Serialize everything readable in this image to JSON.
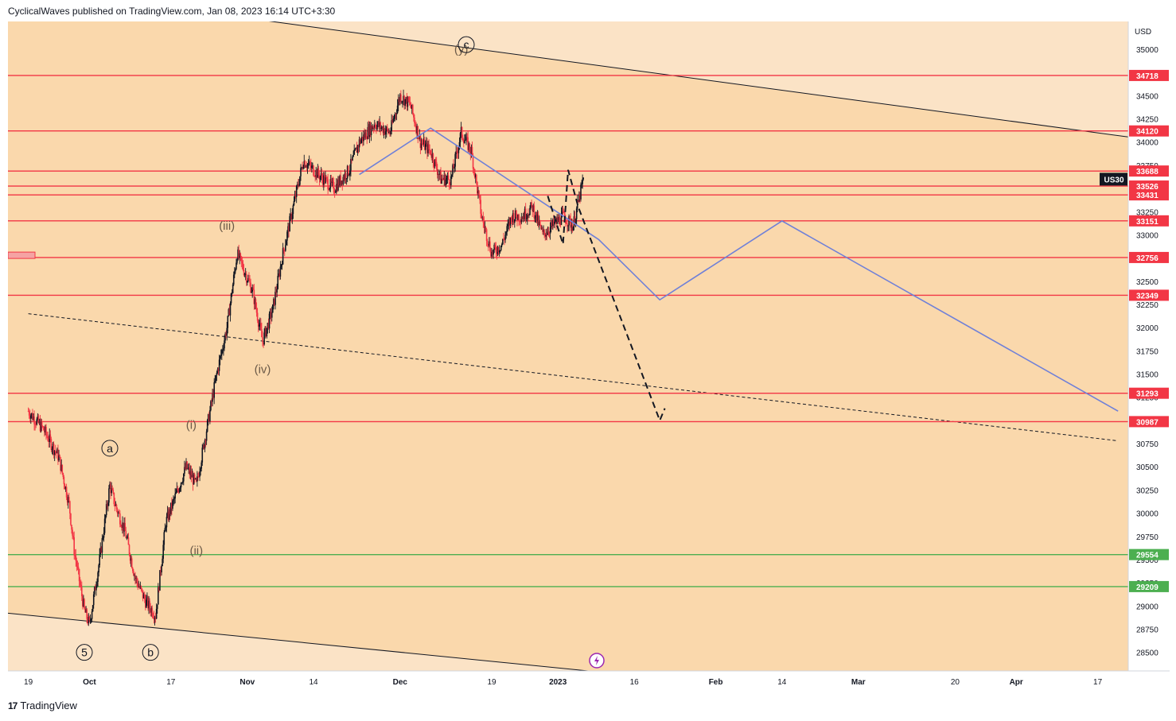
{
  "header": {
    "publisher_text": "CyclicalWaves published on TradingView.com, Jan 08, 2023 16:14 UTC+3:30"
  },
  "footer": {
    "brand": "TradingView",
    "logo_glyph": "17"
  },
  "colors": {
    "background_band": "#fbe3c6",
    "channel_fill": "#fad8ac",
    "level_line": "#f23645",
    "support_line": "#4caf50",
    "projection": "#6f80d8",
    "candle_up": "#131722",
    "candle_down": "#f23645",
    "label_bg_dark": "#131722"
  },
  "chart_data": {
    "type": "candlestick",
    "symbol": "US30",
    "currency": "USD",
    "y_axis": {
      "range": [
        28300,
        35300
      ],
      "ticks": [
        28500,
        28750,
        29000,
        29250,
        29500,
        29750,
        30000,
        30250,
        30500,
        30750,
        31000,
        31250,
        31500,
        31750,
        32000,
        32250,
        32500,
        32750,
        33000,
        33250,
        33500,
        33750,
        34000,
        34250,
        34500,
        34750,
        35000
      ]
    },
    "x_axis": {
      "labels": [
        "19",
        "Oct",
        "17",
        "Nov",
        "14",
        "Dec",
        "19",
        "2023",
        "16",
        "Feb",
        "14",
        "Mar",
        "20",
        "Apr",
        "17"
      ],
      "bold_labels": [
        "Oct",
        "Nov",
        "Dec",
        "2023",
        "Feb",
        "Mar",
        "Apr"
      ]
    },
    "price_levels": [
      {
        "value": 34718,
        "label": "34718",
        "kind": "resistance"
      },
      {
        "value": 34120,
        "label": "34120",
        "kind": "resistance"
      },
      {
        "value": 33688,
        "label": "33688",
        "kind": "resistance"
      },
      {
        "value": 33526,
        "label": "33526",
        "kind": "resistance"
      },
      {
        "value": 33431,
        "label": "33431",
        "kind": "resistance"
      },
      {
        "value": 33151,
        "label": "33151",
        "kind": "resistance"
      },
      {
        "value": 32756,
        "label": "32756",
        "kind": "resistance"
      },
      {
        "value": 32349,
        "label": "32349",
        "kind": "resistance"
      },
      {
        "value": 31293,
        "label": "31293",
        "kind": "resistance"
      },
      {
        "value": 30987,
        "label": "30987",
        "kind": "resistance"
      },
      {
        "value": 29554,
        "label": "29554",
        "kind": "support"
      },
      {
        "value": 29209,
        "label": "29209",
        "kind": "support"
      }
    ],
    "last_price_label": "US30",
    "wave_labels": [
      {
        "text": "5",
        "circled": true,
        "date": "2022-09-30",
        "price": 28500
      },
      {
        "text": "a",
        "circled": true,
        "date": "2022-10-05",
        "price": 30700
      },
      {
        "text": "b",
        "circled": true,
        "date": "2022-10-13",
        "price": 28500
      },
      {
        "text": "(i)",
        "circled": false,
        "date": "2022-10-21",
        "price": 30950
      },
      {
        "text": "(ii)",
        "circled": false,
        "date": "2022-10-22",
        "price": 29600
      },
      {
        "text": "(iii)",
        "circled": false,
        "date": "2022-10-28",
        "price": 33100
      },
      {
        "text": "(iv)",
        "circled": false,
        "date": "2022-11-04",
        "price": 31550
      },
      {
        "text": "(y)",
        "circled": false,
        "date": "2022-12-13",
        "price": 35000
      },
      {
        "text": "c",
        "circled": true,
        "date": "2022-12-14",
        "price": 35050
      }
    ],
    "channel": {
      "upper": [
        {
          "date": "2022-09-06",
          "price": 35750
        },
        {
          "date": "2023-04-21",
          "price": 34070
        }
      ],
      "lower": [
        {
          "date": "2022-09-19",
          "price": 28900
        },
        {
          "date": "2023-01-07",
          "price": 28300
        }
      ]
    },
    "median_line": [
      {
        "date": "2022-09-19",
        "price": 32150
      },
      {
        "date": "2023-04-21",
        "price": 30780
      }
    ],
    "projection_path": [
      {
        "date": "2022-11-23",
        "price": 33650
      },
      {
        "date": "2022-12-07",
        "price": 34150
      },
      {
        "date": "2023-01-09",
        "price": 32950
      },
      {
        "date": "2023-01-21",
        "price": 32300
      },
      {
        "date": "2023-02-14",
        "price": 33150
      },
      {
        "date": "2023-04-21",
        "price": 31100
      }
    ],
    "forecast_path": [
      {
        "date": "2022-12-30",
        "price": 33420
      },
      {
        "date": "2023-01-02",
        "price": 32900
      },
      {
        "date": "2023-01-03",
        "price": 33700
      },
      {
        "date": "2023-01-05",
        "price": 33300
      },
      {
        "date": "2023-01-21",
        "price": 31000
      },
      {
        "date": "2023-01-22",
        "price": 31130
      }
    ],
    "price_path": [
      [
        "2022-09-19",
        31100
      ],
      [
        "2022-09-22",
        30900
      ],
      [
        "2022-09-25",
        30600
      ],
      [
        "2022-09-27",
        30100
      ],
      [
        "2022-09-28",
        29600
      ],
      [
        "2022-09-30",
        28950
      ],
      [
        "2022-10-01",
        28800
      ],
      [
        "2022-10-03",
        29500
      ],
      [
        "2022-10-05",
        30300
      ],
      [
        "2022-10-06",
        30100
      ],
      [
        "2022-10-08",
        29800
      ],
      [
        "2022-10-10",
        29300
      ],
      [
        "2022-10-12",
        29050
      ],
      [
        "2022-10-14",
        28900
      ],
      [
        "2022-10-16",
        29900
      ],
      [
        "2022-10-18",
        30200
      ],
      [
        "2022-10-20",
        30500
      ],
      [
        "2022-10-22",
        30300
      ],
      [
        "2022-10-24",
        30900
      ],
      [
        "2022-10-26",
        31500
      ],
      [
        "2022-10-28",
        32000
      ],
      [
        "2022-10-30",
        32800
      ],
      [
        "2022-11-02",
        32400
      ],
      [
        "2022-11-04",
        31850
      ],
      [
        "2022-11-06",
        32200
      ],
      [
        "2022-11-08",
        32800
      ],
      [
        "2022-11-10",
        33300
      ],
      [
        "2022-11-12",
        33800
      ],
      [
        "2022-11-14",
        33700
      ],
      [
        "2022-11-16",
        33600
      ],
      [
        "2022-11-18",
        33500
      ],
      [
        "2022-11-21",
        33700
      ],
      [
        "2022-11-23",
        34000
      ],
      [
        "2022-11-26",
        34200
      ],
      [
        "2022-11-29",
        34100
      ],
      [
        "2022-12-01",
        34500
      ],
      [
        "2022-12-03",
        34400
      ],
      [
        "2022-12-05",
        34000
      ],
      [
        "2022-12-07",
        33900
      ],
      [
        "2022-12-09",
        33600
      ],
      [
        "2022-12-11",
        33600
      ],
      [
        "2022-12-13",
        34100
      ],
      [
        "2022-12-15",
        33900
      ],
      [
        "2022-12-17",
        33200
      ],
      [
        "2022-12-19",
        32800
      ],
      [
        "2022-12-21",
        32900
      ],
      [
        "2022-12-23",
        33200
      ],
      [
        "2022-12-25",
        33200
      ],
      [
        "2022-12-27",
        33300
      ],
      [
        "2022-12-29",
        33000
      ],
      [
        "2022-12-31",
        33100
      ],
      [
        "2023-01-02",
        33200
      ],
      [
        "2023-01-04",
        33100
      ],
      [
        "2023-01-06",
        33600
      ]
    ]
  }
}
